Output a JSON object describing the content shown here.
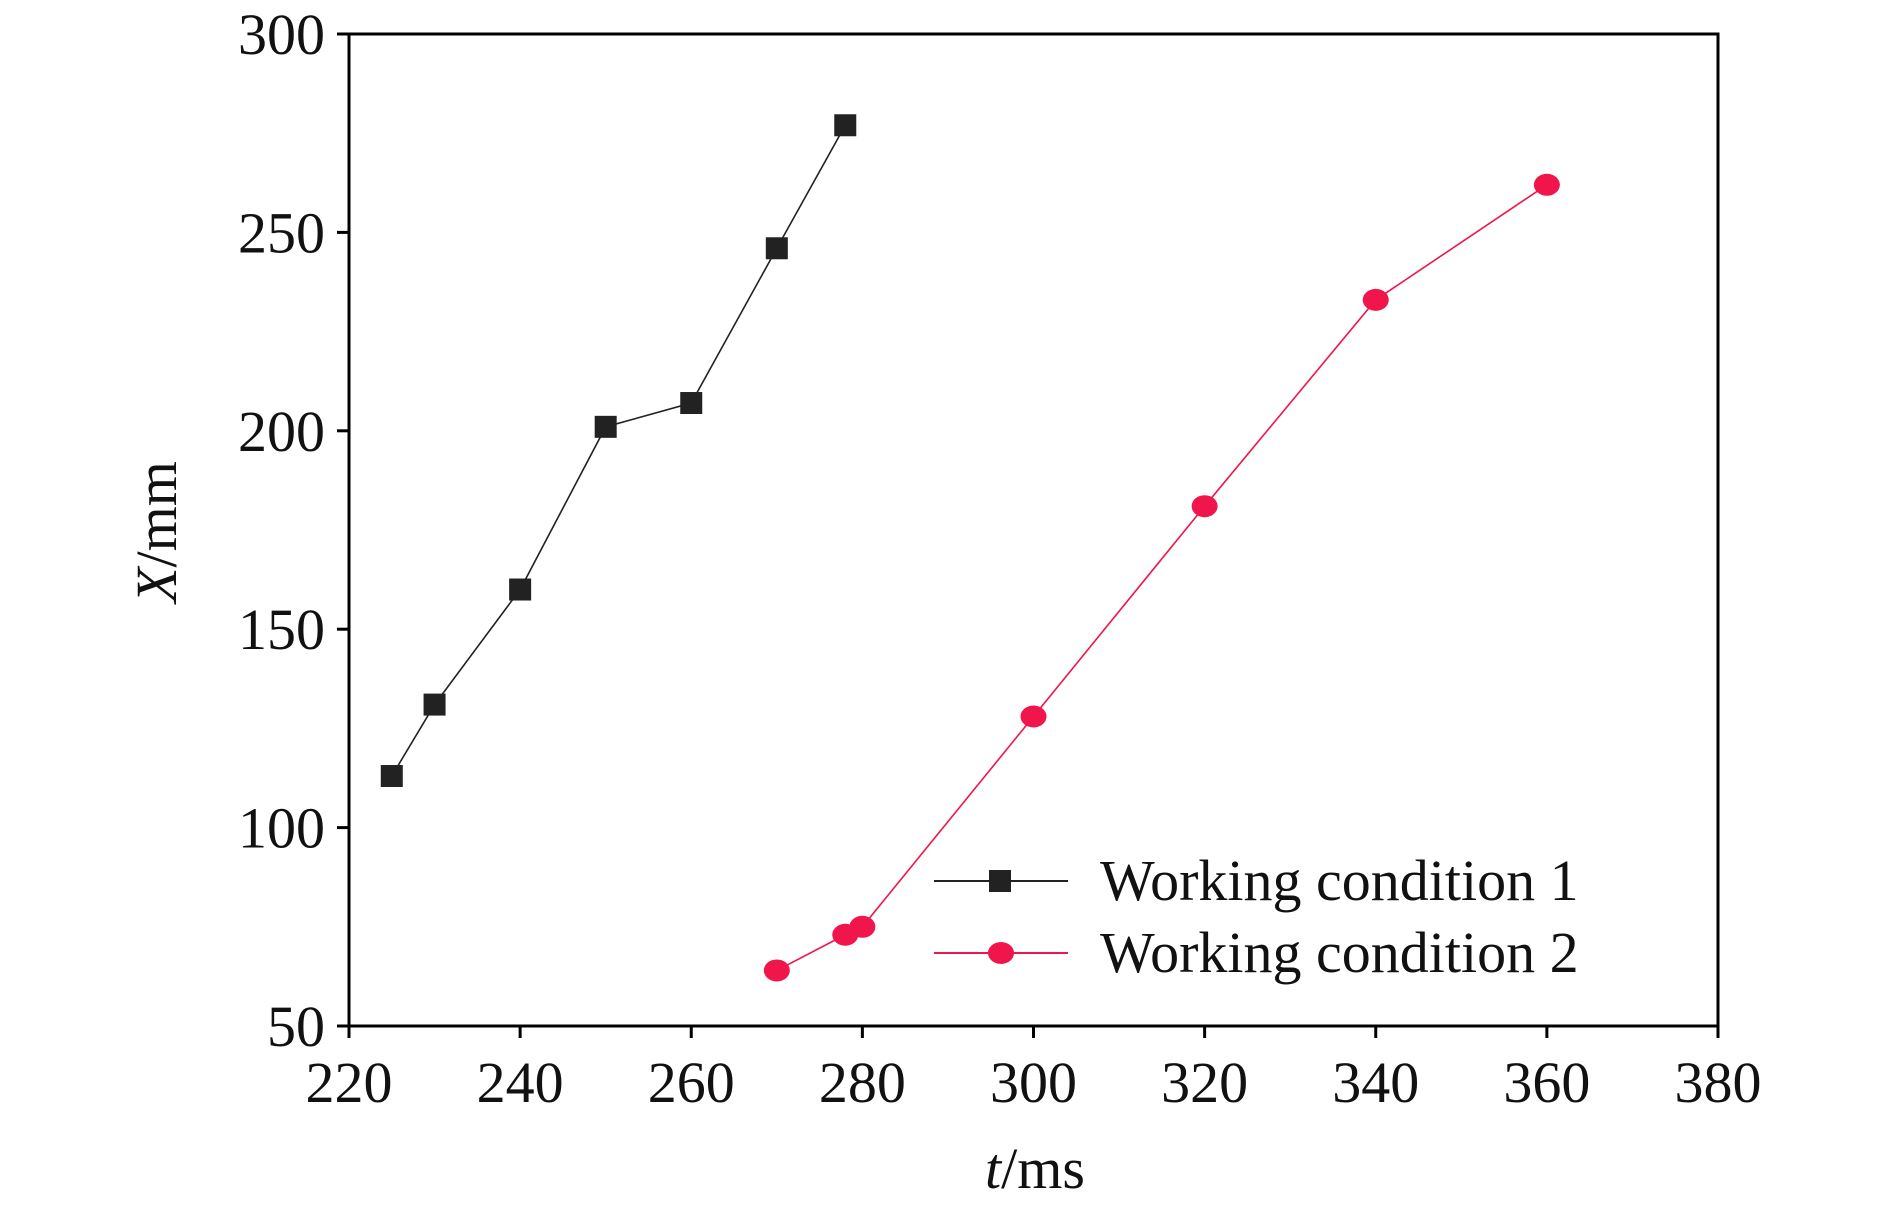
{
  "chart_data": {
    "type": "line",
    "title": "",
    "xlabel": {
      "symbol": "t",
      "unit": "/ms"
    },
    "ylabel": {
      "symbol": "X",
      "unit": "/mm"
    },
    "xlim": [
      220,
      380
    ],
    "ylim": [
      50,
      300
    ],
    "xticks": [
      "220",
      "240",
      "260",
      "280",
      "300",
      "320",
      "340",
      "360",
      "380"
    ],
    "yticks": [
      "50",
      "100",
      "150",
      "200",
      "250",
      "300"
    ],
    "grid": false,
    "legend_position": "bottom-right",
    "series": [
      {
        "name": "Working condition 1",
        "color": "#222222",
        "marker": "square",
        "x": [
          225,
          230,
          240,
          250,
          260,
          270,
          278
        ],
        "y": [
          113,
          131,
          160,
          201,
          207,
          246,
          277
        ]
      },
      {
        "name": "Working condition 2",
        "color": "#f0154a",
        "marker": "circle",
        "x": [
          270,
          278,
          280,
          300,
          320,
          340,
          360
        ],
        "y": [
          64,
          73,
          75,
          128,
          181,
          233,
          262
        ]
      }
    ]
  }
}
